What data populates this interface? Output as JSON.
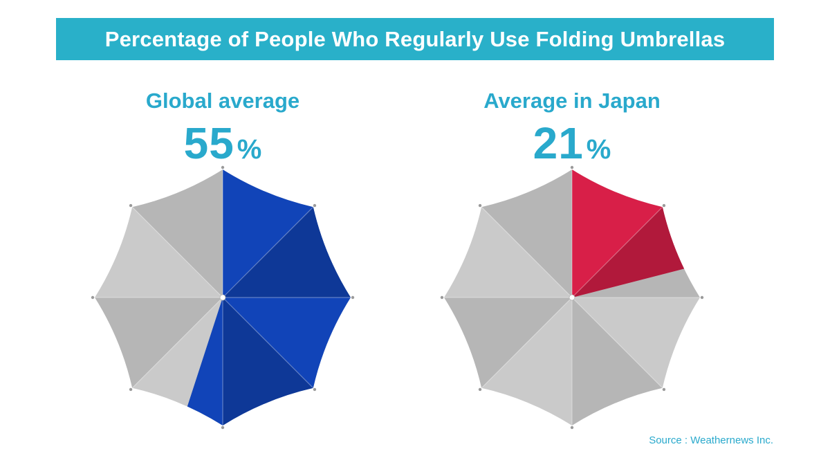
{
  "header": {
    "title": "Percentage of People Who Regularly Use Folding Umbrellas"
  },
  "chart_data": [
    {
      "type": "pie",
      "label": "Global average",
      "value": 55,
      "unit": "%",
      "color": "#1144b8",
      "base_color": "#c2c2c2"
    },
    {
      "type": "pie",
      "label": "Average in Japan",
      "value": 21,
      "unit": "%",
      "color": "#d81f48",
      "base_color": "#c2c2c2"
    }
  ],
  "footer": {
    "source": "Source : Weathernews Inc."
  }
}
